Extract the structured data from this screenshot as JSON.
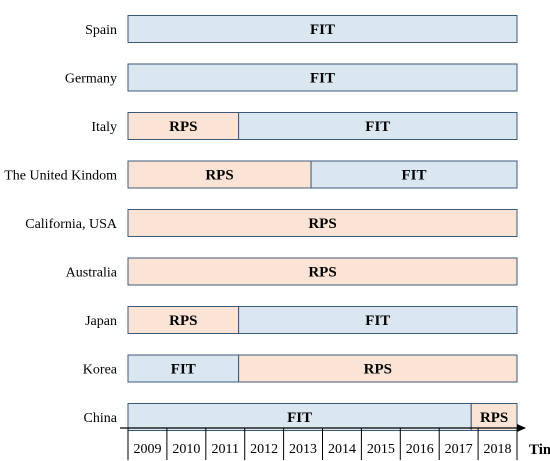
{
  "chart_data": {
    "type": "timeline",
    "xlabel": "Time",
    "x_ticks": [
      "2009",
      "2010",
      "2011",
      "2012",
      "2013",
      "2014",
      "2015",
      "2016",
      "2017",
      "2018"
    ],
    "xlim": [
      2008.8,
      2019.0
    ],
    "grid": false,
    "colors": {
      "FIT": "#dae7f1",
      "RPS": "#fbe4d5",
      "bar_border": "#3c5a78"
    },
    "rows": [
      {
        "name": "Spain",
        "segments": [
          {
            "label": "FIT",
            "start": 2008.8,
            "end": 2019.0
          }
        ]
      },
      {
        "name": "Germany",
        "segments": [
          {
            "label": "FIT",
            "start": 2008.8,
            "end": 2019.0
          }
        ]
      },
      {
        "name": "Italy",
        "segments": [
          {
            "label": "RPS",
            "start": 2008.8,
            "end": 2011.7
          },
          {
            "label": "FIT",
            "start": 2011.7,
            "end": 2019.0
          }
        ]
      },
      {
        "name": "The United Kindom",
        "segments": [
          {
            "label": "RPS",
            "start": 2008.8,
            "end": 2013.6
          },
          {
            "label": "FIT",
            "start": 2013.6,
            "end": 2019.0
          }
        ]
      },
      {
        "name": "California, USA",
        "segments": [
          {
            "label": "RPS",
            "start": 2008.8,
            "end": 2019.0
          }
        ]
      },
      {
        "name": "Australia",
        "segments": [
          {
            "label": "RPS",
            "start": 2008.8,
            "end": 2019.0
          }
        ]
      },
      {
        "name": "Japan",
        "segments": [
          {
            "label": "RPS",
            "start": 2008.8,
            "end": 2011.7
          },
          {
            "label": "FIT",
            "start": 2011.7,
            "end": 2019.0
          }
        ]
      },
      {
        "name": "Korea",
        "segments": [
          {
            "label": "FIT",
            "start": 2008.8,
            "end": 2011.7
          },
          {
            "label": "RPS",
            "start": 2011.7,
            "end": 2019.0
          }
        ]
      },
      {
        "name": "China",
        "segments": [
          {
            "label": "FIT",
            "start": 2008.8,
            "end": 2017.8
          },
          {
            "label": "RPS",
            "start": 2017.8,
            "end": 2019.0
          }
        ]
      }
    ]
  }
}
